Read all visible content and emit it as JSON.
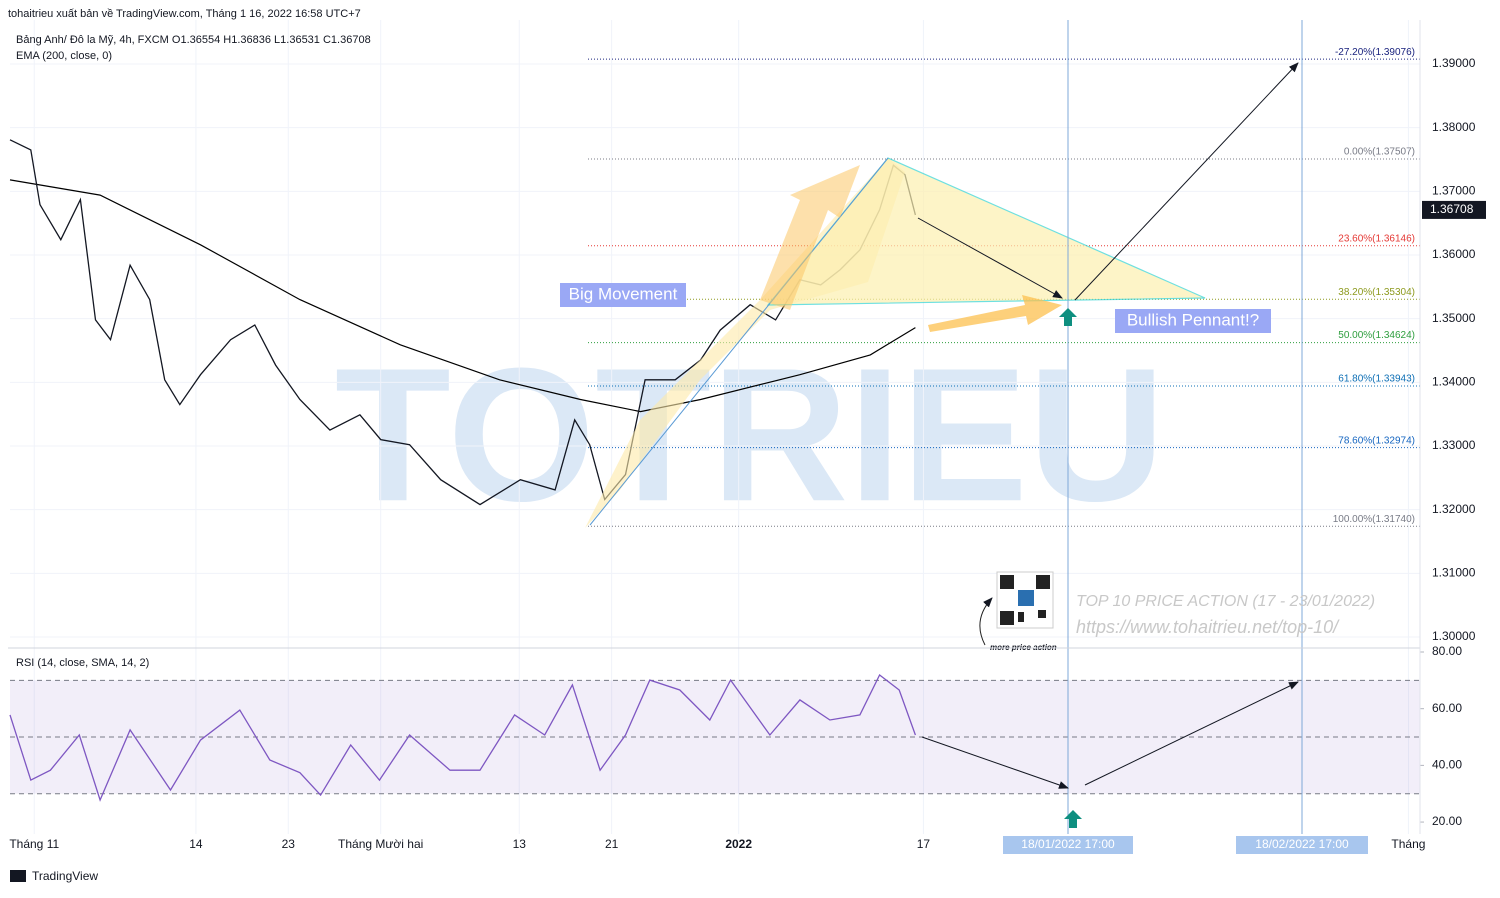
{
  "header": {
    "published": "tohaitrieu xuất bản về TradingView.com, Tháng 1 16, 2022 16:58 UTC+7",
    "symbol": "Bảng Anh/ Đô la Mỹ, 4h, FXCM  O1.36554  H1.36836  L1.36531  C1.36708",
    "indicator": "EMA (200, close, 0)",
    "footer": "TradingView",
    "watermark": "TOTRIEU"
  },
  "annotations": {
    "big": "Big Movement",
    "pennant": "Bullish Pennant!?",
    "promo": "TOP 10 PRICE ACTION (17 - 23/01/2022)",
    "url": "https://www.tohaitrieu.net/top-10/",
    "more": "more price action",
    "date1": "18/01/2022 17:00",
    "date2": "18/02/2022 17:00"
  },
  "chart_data": [
    {
      "type": "line",
      "xlim": [
        -2.1,
        120
      ],
      "ylim": [
        1.29827,
        1.39691
      ],
      "xticks": [
        {
          "value": 0,
          "label": "Tháng 11"
        },
        14,
        {
          "value": 22,
          "label": "23"
        },
        {
          "value": 30,
          "label": "Tháng Mười hai"
        },
        {
          "value": 42,
          "label": "13"
        },
        {
          "value": 50,
          "label": "21"
        },
        {
          "value": 61,
          "label": "2022"
        },
        {
          "value": 77,
          "label": "17"
        },
        {
          "value": 119,
          "label": "Tháng"
        }
      ],
      "yticks": [
        {
          "value": 1.3,
          "label": "1.30000"
        },
        {
          "value": 1.31,
          "label": "1.31000"
        },
        {
          "value": 1.32,
          "label": "1.32000"
        },
        {
          "value": 1.33,
          "label": "1.33000"
        },
        {
          "value": 1.34,
          "label": "1.34000"
        },
        {
          "value": 1.35,
          "label": "1.35000"
        },
        {
          "value": 1.36,
          "label": "1.36000"
        },
        {
          "value": 1.37,
          "label": "1.37000"
        },
        {
          "value": 1.38,
          "label": "1.38000"
        },
        {
          "value": 1.39,
          "label": "1.39000"
        }
      ],
      "grid": true,
      "last_price": 1.36708,
      "x": [
        -2.1,
        -0.3,
        0.5,
        2.3,
        4,
        5.3,
        6.6,
        8.3,
        10,
        11.3,
        12.6,
        14.4,
        17,
        19.1,
        20.9,
        23,
        25.6,
        28.2,
        30,
        32.5,
        35.2,
        38.6,
        42.1,
        45.1,
        46.8,
        48.1,
        49.4,
        51.2,
        52.9,
        55.5,
        57.7,
        59.4,
        62,
        64.2,
        66.3,
        68.1,
        69.8,
        71.5,
        73.2,
        74.4,
        75.4,
        76.3
      ],
      "series": [
        {
          "name": "GBPUSD",
          "color": "#131722",
          "values": [
            1.3781,
            1.3765,
            1.3679,
            1.3624,
            1.3687,
            1.3498,
            1.3467,
            1.3584,
            1.353,
            1.3404,
            1.3365,
            1.3412,
            1.3467,
            1.349,
            1.3427,
            1.3373,
            1.3325,
            1.3349,
            1.331,
            1.3302,
            1.3247,
            1.3208,
            1.3247,
            1.3231,
            1.3341,
            1.3302,
            1.3216,
            1.3255,
            1.3404,
            1.3404,
            1.3435,
            1.3482,
            1.3522,
            1.3498,
            1.3561,
            1.3553,
            1.3577,
            1.3608,
            1.3671,
            1.3741,
            1.3726,
            1.3663
          ]
        }
      ],
      "ema": {
        "color": "#000000",
        "x": [
          -2.1,
          5.7,
          14.4,
          23,
          31.7,
          40.3,
          47.3,
          52.5,
          57.7,
          66.3,
          72.4,
          76.3
        ],
        "values": [
          1.3718,
          1.3694,
          1.3616,
          1.353,
          1.3459,
          1.3404,
          1.3373,
          1.3354,
          1.3373,
          1.3412,
          1.3443,
          1.3486
        ]
      },
      "fib": [
        {
          "label": "-27.20%(1.39076)",
          "value": 1.39076,
          "color": "#1a237e"
        },
        {
          "label": "0.00%(1.37507)",
          "value": 1.37507,
          "color": "#787b86"
        },
        {
          "label": "23.60%(1.36146)",
          "value": 1.36146,
          "color": "#e53935"
        },
        {
          "label": "38.20%(1.35304)",
          "value": 1.35304,
          "color": "#8d9a1e"
        },
        {
          "label": "50.00%(1.34624)",
          "value": 1.34624,
          "color": "#2e9e3e"
        },
        {
          "label": "61.80%(1.33943)",
          "value": 1.33943,
          "color": "#0e6fb5"
        },
        {
          "label": "78.60%(1.32974)",
          "value": 1.32974,
          "color": "#1565c0"
        },
        {
          "label": "100.00%(1.31740)",
          "value": 1.3174,
          "color": "#787b86"
        }
      ]
    },
    {
      "type": "line",
      "title": "RSI (14, close, SMA, 14, 2)",
      "ylim": [
        17.2,
        80
      ],
      "yticks": [
        {
          "value": 20,
          "label": "20.00"
        },
        {
          "value": 40,
          "label": "40.00"
        },
        {
          "value": 60,
          "label": "60.00"
        },
        {
          "value": 80,
          "label": "80.00"
        }
      ],
      "levels": [
        70,
        50,
        30
      ],
      "x": [
        -2.1,
        -0.3,
        1.4,
        3.9,
        5.7,
        8.3,
        11.8,
        14.4,
        17.8,
        20.4,
        23,
        24.8,
        27.4,
        29.9,
        32.5,
        36,
        38.6,
        41.6,
        44.2,
        46.6,
        49,
        51.2,
        53.3,
        55.9,
        58.5,
        60.3,
        63.7,
        66.3,
        68.9,
        71.5,
        73.2,
        74.9,
        76.3
      ],
      "series": [
        {
          "name": "RSI",
          "color": "#7e57c2",
          "values": [
            57.8,
            34.8,
            38.3,
            50.7,
            27.8,
            52.5,
            31.3,
            48.9,
            59.5,
            41.9,
            37.4,
            29.5,
            47.2,
            34.8,
            50.7,
            38.3,
            38.3,
            57.8,
            50.7,
            68.4,
            38.3,
            50.7,
            70.1,
            66.6,
            56,
            70.1,
            50.7,
            63.1,
            56,
            57.8,
            71.9,
            66.6,
            50.7
          ]
        }
      ]
    }
  ]
}
